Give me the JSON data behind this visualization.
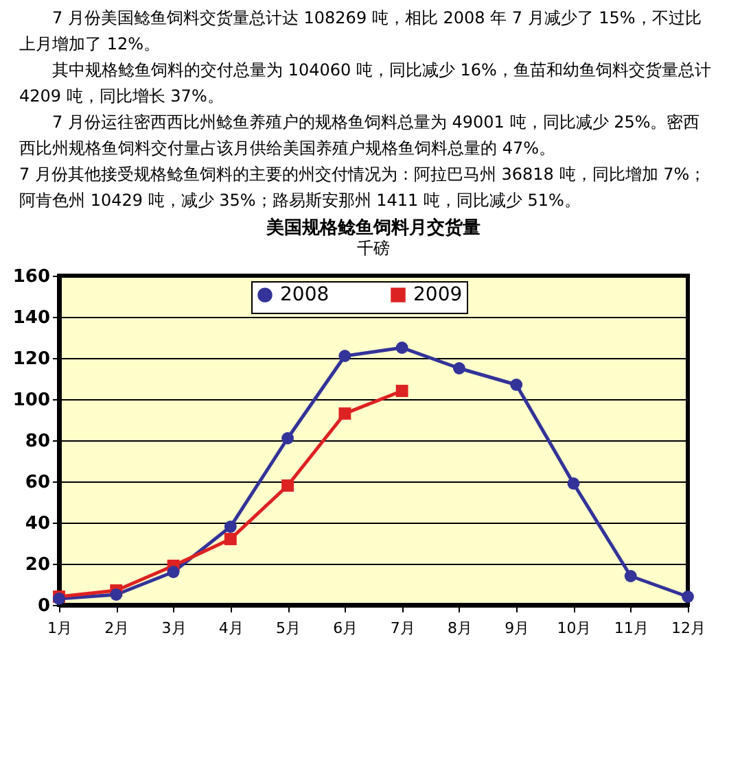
{
  "chart_data": {
    "type": "line",
    "title": "美国规格鲶鱼饲料月交货量",
    "ylabel": "千磅",
    "annotations": [
      "7 月份美国鲶鱼饲料交货量总计达 108269 吨，相比 2008 年 7 月减少了 15%，不过比上月增加了 12%。",
      "其中规格鲶鱼饲料的交付总量为 104060 吨，同比减少 16%，鱼苗和幼鱼饲料交货量总计 4209 吨，同比增长 37%。",
      "7 月份运往密西西比州鲶鱼养殖户的规格鱼饲料总量为 49001 吨，同比减少 25%。密西西比州规格鱼饲料交付量占该月供给美国养殖户规格鱼饲料总量的 47%。",
      "7 月份其他接受规格鲶鱼饲料的主要的州交付情况为：阿拉巴马州 36818 吨，同比增加 7%；阿肯色州 10429 吨，减少 35%；路易斯安那州 1411 吨，同比减少 51%。"
    ],
    "categories": [
      "1月",
      "2月",
      "3月",
      "4月",
      "5月",
      "6月",
      "7月",
      "8月",
      "9月",
      "10月",
      "11月",
      "12月"
    ],
    "series": [
      {
        "name": "2008",
        "color": "#333399",
        "values": [
          3,
          5,
          16,
          38,
          81,
          121,
          125,
          115,
          107,
          59,
          14,
          4
        ],
        "marker": "circle"
      },
      {
        "name": "2009",
        "color": "#dd2222",
        "values": [
          4,
          7,
          19,
          32,
          58,
          93,
          104,
          null,
          null,
          null,
          null,
          null
        ],
        "marker": "square"
      }
    ],
    "ylim": [
      0,
      160
    ],
    "yticks": [
      0,
      20,
      40,
      60,
      80,
      100,
      120,
      140,
      160
    ],
    "grid": "y",
    "legend": "top",
    "line_style": "solid"
  }
}
